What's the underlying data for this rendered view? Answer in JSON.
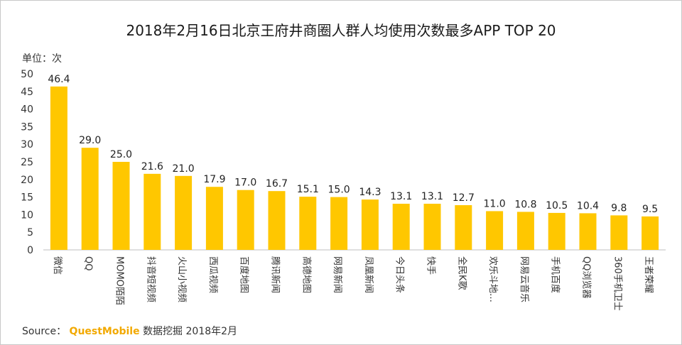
{
  "chart_data": {
    "type": "bar",
    "title": "2018年2月16日北京王府井商圈人群人均使用次数最多APP TOP 20",
    "unit_label": "单位：次",
    "categories": [
      "微信",
      "QQ",
      "MOMO陌陌",
      "抖音短视频",
      "火山小视频",
      "西瓜视频",
      "百度地图",
      "腾讯新闻",
      "高德地图",
      "网易新闻",
      "凤凰新闻",
      "今日头条",
      "快手",
      "全民K歌",
      "欢乐斗地…",
      "网易云音乐",
      "手机百度",
      "QQ浏览器",
      "360手机卫士",
      "王者荣耀"
    ],
    "values": [
      46.4,
      29.0,
      25.0,
      21.6,
      21.0,
      17.9,
      17.0,
      16.7,
      15.1,
      15.0,
      14.3,
      13.1,
      13.1,
      12.7,
      11.0,
      10.8,
      10.5,
      10.4,
      9.8,
      9.5
    ],
    "value_labels": [
      "46.4",
      "29.0",
      "25.0",
      "21.6",
      "21.0",
      "17.9",
      "17.0",
      "16.7",
      "15.1",
      "15.0",
      "14.3",
      "13.1",
      "13.1",
      "12.7",
      "11.0",
      "10.8",
      "10.5",
      "10.4",
      "9.8",
      "9.5"
    ],
    "ylim": [
      0,
      50
    ],
    "yticks": [
      "0",
      "5",
      "10",
      "15",
      "20",
      "25",
      "30",
      "35",
      "40",
      "45",
      "50"
    ],
    "grid": false,
    "bar_color": "#FFC700"
  },
  "source": {
    "prefix": "Source：",
    "brand": "QuestMobile",
    "suffix": "数据挖掘 2018年2月"
  }
}
